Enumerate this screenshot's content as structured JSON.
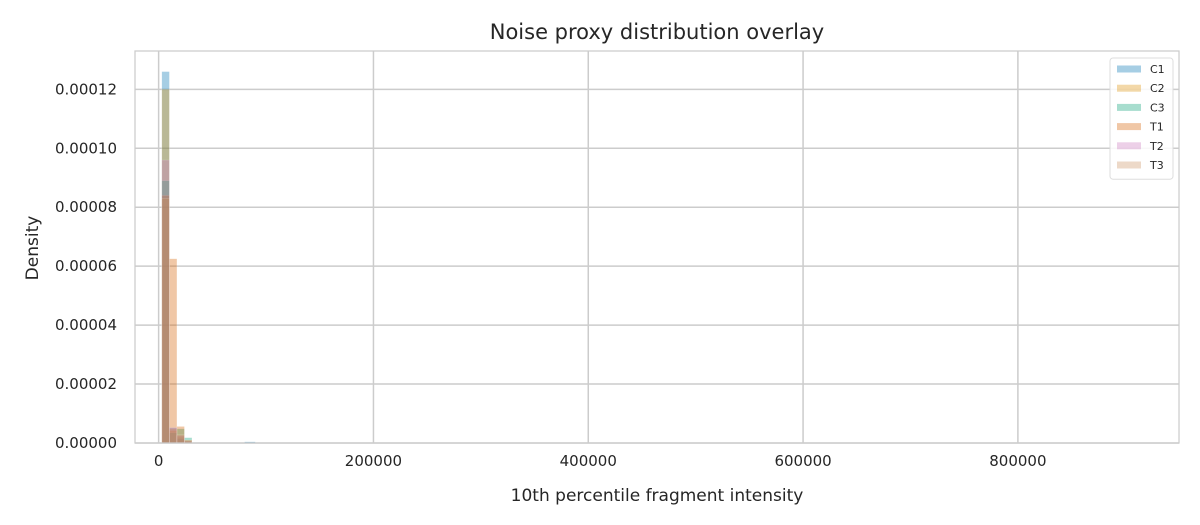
{
  "chart_data": {
    "type": "histogram",
    "title": "Noise proxy distribution overlay",
    "xlabel": "10th percentile fragment intensity",
    "ylabel": "Density",
    "xlim": [
      -22000,
      950000
    ],
    "ylim": [
      0,
      0.000133
    ],
    "xticks": [
      0,
      200000,
      400000,
      600000,
      800000
    ],
    "xtick_labels": [
      "0",
      "200000",
      "400000",
      "600000",
      "800000"
    ],
    "yticks": [
      0,
      2e-05,
      4e-05,
      6e-05,
      8e-05,
      0.0001,
      0.00012
    ],
    "ytick_labels": [
      "0.00000",
      "0.00002",
      "0.00004",
      "0.00006",
      "0.00008",
      "0.00010",
      "0.00012"
    ],
    "grid": true,
    "legend_position": "top-right",
    "series": [
      {
        "name": "C1",
        "color": "#0173b2",
        "bins": [
          [
            3000,
            10000,
            0.000126
          ],
          [
            10000,
            17000,
            5.2e-06
          ],
          [
            17000,
            24000,
            1.5e-06
          ],
          [
            24000,
            31000,
            6e-07
          ],
          [
            80000,
            90000,
            4e-07
          ]
        ]
      },
      {
        "name": "C2",
        "color": "#de8f05",
        "bins": [
          [
            3000,
            10000,
            0.00012
          ],
          [
            10000,
            17000,
            4.2e-06
          ],
          [
            17000,
            24000,
            2.2e-06
          ],
          [
            24000,
            31000,
            5e-07
          ]
        ]
      },
      {
        "name": "C3",
        "color": "#029e73",
        "bins": [
          [
            3000,
            10000,
            8.9e-05
          ],
          [
            10000,
            17000,
            3.5e-06
          ],
          [
            17000,
            24000,
            4.8e-06
          ],
          [
            24000,
            31000,
            1.8e-06
          ]
        ]
      },
      {
        "name": "T1",
        "color": "#d55e00",
        "bins": [
          [
            3000,
            10000,
            8.4e-05
          ],
          [
            10000,
            17000,
            6.25e-05
          ],
          [
            17000,
            24000,
            5.6e-06
          ],
          [
            24000,
            31000,
            1e-06
          ]
        ]
      },
      {
        "name": "T2",
        "color": "#cc78bc",
        "bins": [
          [
            3000,
            10000,
            9.6e-05
          ],
          [
            10000,
            17000,
            5.2e-06
          ],
          [
            17000,
            24000,
            2.5e-06
          ],
          [
            24000,
            31000,
            6e-07
          ]
        ]
      },
      {
        "name": "T3",
        "color": "#ca9161",
        "bins": [
          [
            3000,
            10000,
            8.3e-05
          ],
          [
            10000,
            17000,
            4.8e-06
          ],
          [
            17000,
            24000,
            2.8e-06
          ],
          [
            24000,
            31000,
            8e-07
          ]
        ]
      }
    ]
  }
}
